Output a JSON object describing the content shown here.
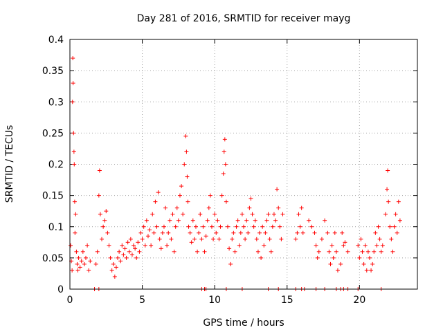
{
  "chart_data": {
    "type": "scatter",
    "title": "Day 281 of 2016, SRMTID for receiver mayg",
    "xlabel": "GPS time / hours",
    "ylabel": "SRMTID / TECUs",
    "xlim": [
      0,
      24
    ],
    "ylim": [
      0,
      0.4
    ],
    "xticks": [
      0,
      5,
      10,
      15,
      20
    ],
    "xtick_labels": [
      "0",
      "5",
      "10",
      "15",
      "20"
    ],
    "yticks": [
      0,
      0.05,
      0.1,
      0.15,
      0.2,
      0.25,
      0.3,
      0.35,
      0.4
    ],
    "ytick_labels": [
      "0",
      "0.05",
      "0.1",
      "0.15",
      "0.2",
      "0.25",
      "0.3",
      "0.35",
      "0.4"
    ],
    "grid": true,
    "marker": "plus",
    "color": "#ff0000",
    "series": [
      {
        "name": "SRMTID",
        "points": [
          [
            0.05,
            0.07
          ],
          [
            0.1,
            0.045
          ],
          [
            0.15,
            0.03
          ],
          [
            0.18,
            0.3
          ],
          [
            0.2,
            0.37
          ],
          [
            0.22,
            0.33
          ],
          [
            0.25,
            0.25
          ],
          [
            0.28,
            0.22
          ],
          [
            0.3,
            0.2
          ],
          [
            0.33,
            0.14
          ],
          [
            0.35,
            0.09
          ],
          [
            0.4,
            0.12
          ],
          [
            0.45,
            0.06
          ],
          [
            0.5,
            0.04
          ],
          [
            0.55,
            0.03
          ],
          [
            0.6,
            0.05
          ],
          [
            0.7,
            0.035
          ],
          [
            0.8,
            0.045
          ],
          [
            0.9,
            0.06
          ],
          [
            1.0,
            0.04
          ],
          [
            1.1,
            0.05
          ],
          [
            1.2,
            0.07
          ],
          [
            1.3,
            0.03
          ],
          [
            1.4,
            0.045
          ],
          [
            1.8,
            0.04
          ],
          [
            1.9,
            0.06
          ],
          [
            2.0,
            0.15
          ],
          [
            2.05,
            0.19
          ],
          [
            2.1,
            0.12
          ],
          [
            2.2,
            0.08
          ],
          [
            2.3,
            0.1
          ],
          [
            2.4,
            0.11
          ],
          [
            2.5,
            0.125
          ],
          [
            2.6,
            0.09
          ],
          [
            2.7,
            0.07
          ],
          [
            2.8,
            0.05
          ],
          [
            2.9,
            0.03
          ],
          [
            3.0,
            0.04
          ],
          [
            3.1,
            0.02
          ],
          [
            3.2,
            0.035
          ],
          [
            3.3,
            0.05
          ],
          [
            3.4,
            0.06
          ],
          [
            3.5,
            0.045
          ],
          [
            3.6,
            0.07
          ],
          [
            3.7,
            0.055
          ],
          [
            3.8,
            0.065
          ],
          [
            3.9,
            0.05
          ],
          [
            4.0,
            0.075
          ],
          [
            4.1,
            0.06
          ],
          [
            4.2,
            0.08
          ],
          [
            4.3,
            0.055
          ],
          [
            4.4,
            0.07
          ],
          [
            4.5,
            0.065
          ],
          [
            4.6,
            0.05
          ],
          [
            4.7,
            0.075
          ],
          [
            4.8,
            0.06
          ],
          [
            4.9,
            0.09
          ],
          [
            5.0,
            0.08
          ],
          [
            5.1,
            0.1
          ],
          [
            5.2,
            0.07
          ],
          [
            5.3,
            0.11
          ],
          [
            5.4,
            0.085
          ],
          [
            5.5,
            0.095
          ],
          [
            5.6,
            0.07
          ],
          [
            5.7,
            0.12
          ],
          [
            5.8,
            0.09
          ],
          [
            5.9,
            0.14
          ],
          [
            6.0,
            0.1
          ],
          [
            6.1,
            0.155
          ],
          [
            6.2,
            0.08
          ],
          [
            6.3,
            0.065
          ],
          [
            6.4,
            0.09
          ],
          [
            6.5,
            0.1
          ],
          [
            6.6,
            0.13
          ],
          [
            6.7,
            0.07
          ],
          [
            6.8,
            0.09
          ],
          [
            6.9,
            0.11
          ],
          [
            7.0,
            0.08
          ],
          [
            7.1,
            0.12
          ],
          [
            7.2,
            0.06
          ],
          [
            7.3,
            0.1
          ],
          [
            7.4,
            0.13
          ],
          [
            7.5,
            0.11
          ],
          [
            7.6,
            0.15
          ],
          [
            7.7,
            0.165
          ],
          [
            7.8,
            0.12
          ],
          [
            7.9,
            0.2
          ],
          [
            8.0,
            0.245
          ],
          [
            8.05,
            0.22
          ],
          [
            8.1,
            0.18
          ],
          [
            8.15,
            0.14
          ],
          [
            8.2,
            0.1
          ],
          [
            8.3,
            0.09
          ],
          [
            8.4,
            0.075
          ],
          [
            8.5,
            0.11
          ],
          [
            8.6,
            0.08
          ],
          [
            8.7,
            0.1
          ],
          [
            8.8,
            0.06
          ],
          [
            8.9,
            0.09
          ],
          [
            9.0,
            0.12
          ],
          [
            9.1,
            0.08
          ],
          [
            9.2,
            0.1
          ],
          [
            9.3,
            0.06
          ],
          [
            9.4,
            0.085
          ],
          [
            9.5,
            0.11
          ],
          [
            9.6,
            0.13
          ],
          [
            9.7,
            0.15
          ],
          [
            9.8,
            0.1
          ],
          [
            9.9,
            0.08
          ],
          [
            10.0,
            0.12
          ],
          [
            10.1,
            0.09
          ],
          [
            10.2,
            0.11
          ],
          [
            10.3,
            0.08
          ],
          [
            10.4,
            0.1
          ],
          [
            10.5,
            0.15
          ],
          [
            10.6,
            0.185
          ],
          [
            10.65,
            0.22
          ],
          [
            10.7,
            0.24
          ],
          [
            10.75,
            0.2
          ],
          [
            10.8,
            0.14
          ],
          [
            10.9,
            0.1
          ],
          [
            11.0,
            0.065
          ],
          [
            11.1,
            0.04
          ],
          [
            11.2,
            0.08
          ],
          [
            11.3,
            0.09
          ],
          [
            11.4,
            0.06
          ],
          [
            11.5,
            0.1
          ],
          [
            11.6,
            0.11
          ],
          [
            11.7,
            0.07
          ],
          [
            11.8,
            0.09
          ],
          [
            11.9,
            0.12
          ],
          [
            12.0,
            0.1
          ],
          [
            12.1,
            0.08
          ],
          [
            12.2,
            0.11
          ],
          [
            12.3,
            0.09
          ],
          [
            12.4,
            0.13
          ],
          [
            12.5,
            0.145
          ],
          [
            12.6,
            0.12
          ],
          [
            12.7,
            0.1
          ],
          [
            12.8,
            0.11
          ],
          [
            12.9,
            0.08
          ],
          [
            13.0,
            0.06
          ],
          [
            13.1,
            0.09
          ],
          [
            13.2,
            0.05
          ],
          [
            13.3,
            0.1
          ],
          [
            13.4,
            0.07
          ],
          [
            13.5,
            0.09
          ],
          [
            13.6,
            0.11
          ],
          [
            13.7,
            0.12
          ],
          [
            13.8,
            0.08
          ],
          [
            13.9,
            0.06
          ],
          [
            14.0,
            0.1
          ],
          [
            14.1,
            0.12
          ],
          [
            14.2,
            0.11
          ],
          [
            14.3,
            0.16
          ],
          [
            14.4,
            0.13
          ],
          [
            14.5,
            0.1
          ],
          [
            14.6,
            0.08
          ],
          [
            14.7,
            0.12
          ],
          [
            15.6,
            0.08
          ],
          [
            15.7,
            0.09
          ],
          [
            15.8,
            0.12
          ],
          [
            15.9,
            0.1
          ],
          [
            16.0,
            0.13
          ],
          [
            16.1,
            0.09
          ],
          [
            16.5,
            0.11
          ],
          [
            16.7,
            0.1
          ],
          [
            16.9,
            0.09
          ],
          [
            17.0,
            0.07
          ],
          [
            17.1,
            0.05
          ],
          [
            17.2,
            0.06
          ],
          [
            17.4,
            0.08
          ],
          [
            17.6,
            0.11
          ],
          [
            17.8,
            0.09
          ],
          [
            17.9,
            0.06
          ],
          [
            18.0,
            0.04
          ],
          [
            18.1,
            0.07
          ],
          [
            18.2,
            0.05
          ],
          [
            18.3,
            0.09
          ],
          [
            18.4,
            0.06
          ],
          [
            18.5,
            0.03
          ],
          [
            18.7,
            0.04
          ],
          [
            18.8,
            0.09
          ],
          [
            18.9,
            0.07
          ],
          [
            19.0,
            0.075
          ],
          [
            19.2,
            0.06
          ],
          [
            19.9,
            0.07
          ],
          [
            20.0,
            0.05
          ],
          [
            20.1,
            0.08
          ],
          [
            20.2,
            0.06
          ],
          [
            20.3,
            0.04
          ],
          [
            20.4,
            0.07
          ],
          [
            20.5,
            0.03
          ],
          [
            20.6,
            0.06
          ],
          [
            20.7,
            0.05
          ],
          [
            20.8,
            0.03
          ],
          [
            20.9,
            0.04
          ],
          [
            21.0,
            0.06
          ],
          [
            21.1,
            0.09
          ],
          [
            21.2,
            0.07
          ],
          [
            21.3,
            0.1
          ],
          [
            21.4,
            0.08
          ],
          [
            21.5,
            0.06
          ],
          [
            21.6,
            0.07
          ],
          [
            21.8,
            0.12
          ],
          [
            21.9,
            0.16
          ],
          [
            21.95,
            0.19
          ],
          [
            22.0,
            0.14
          ],
          [
            22.1,
            0.1
          ],
          [
            22.2,
            0.08
          ],
          [
            22.3,
            0.06
          ],
          [
            22.4,
            0.1
          ],
          [
            22.5,
            0.12
          ],
          [
            22.6,
            0.09
          ],
          [
            22.7,
            0.14
          ],
          [
            22.8,
            0.11
          ]
        ]
      }
    ],
    "zero_points_x": [
      1.7,
      2.0,
      9.1,
      9.3,
      9.4,
      10.8,
      11.9,
      13.7,
      14.4,
      15.6,
      16.0,
      16.2,
      17.0,
      17.6,
      18.4,
      18.7,
      18.9,
      19.2,
      19.9,
      21.5
    ]
  }
}
